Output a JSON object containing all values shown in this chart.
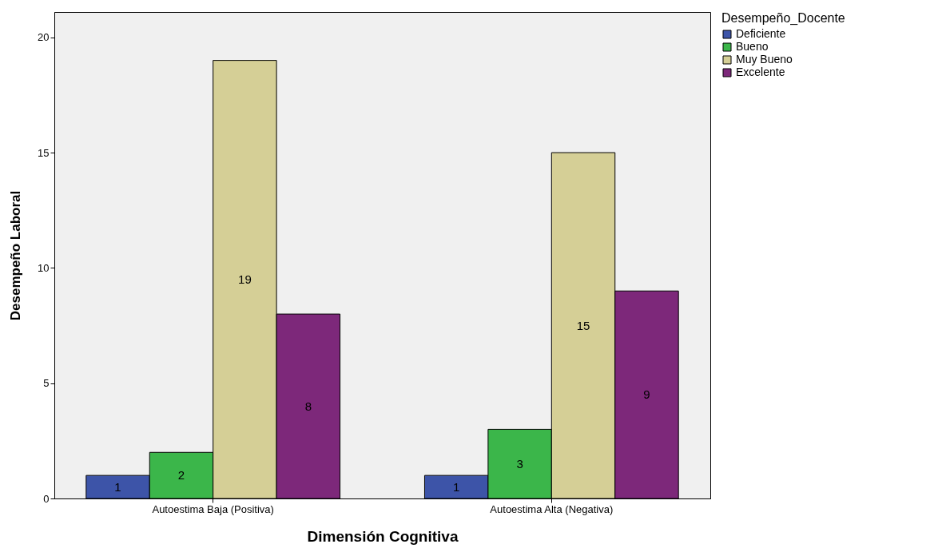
{
  "chart_data": {
    "type": "bar",
    "xlabel": "Dimensión Cognitiva",
    "ylabel": "Desempeño Laboral",
    "legend_title": "Desempeño_Docente",
    "categories": [
      "Autoestima Baja (Positiva)",
      "Autoestima Alta (Negativa)"
    ],
    "series": [
      {
        "name": "Deficiente",
        "color": "#3d54a8",
        "values": [
          1,
          1
        ]
      },
      {
        "name": "Bueno",
        "color": "#3bb64a",
        "values": [
          2,
          3
        ]
      },
      {
        "name": "Muy Bueno",
        "color": "#d5cf96",
        "values": [
          19,
          15
        ]
      },
      {
        "name": "Excelente",
        "color": "#7d287a",
        "values": [
          8,
          9
        ]
      }
    ],
    "ylim": [
      0,
      21.1
    ],
    "yticks": [
      0,
      5,
      10,
      15,
      20
    ],
    "grid": false,
    "legend": "top right",
    "data_labels": true
  }
}
